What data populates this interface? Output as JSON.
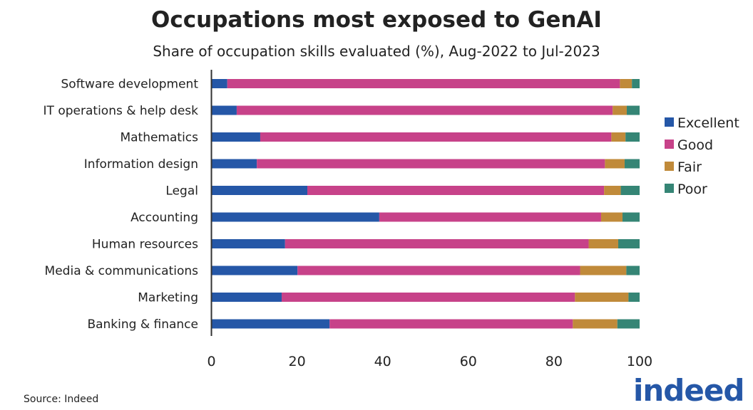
{
  "chart_data": {
    "type": "bar",
    "orientation": "horizontal",
    "stacked": true,
    "title": "Occupations most exposed to GenAI",
    "subtitle": "Share of occupation skills evaluated (%), Aug-2022 to Jul-2023",
    "xlabel": "",
    "ylabel": "",
    "xlim": [
      0,
      100
    ],
    "xticks": [
      "0",
      "20",
      "40",
      "60",
      "80",
      "100"
    ],
    "grid": false,
    "legend_position": "right",
    "categories": [
      "Software development",
      "IT operations & help desk",
      "Mathematics",
      "Information design",
      "Legal",
      "Accounting",
      "Human resources",
      "Media & communications",
      "Marketing",
      "Banking & finance"
    ],
    "series": [
      {
        "name": "Excellent",
        "color": "#2557a7",
        "values": [
          3.7,
          5.9,
          11.4,
          10.6,
          22.4,
          39.2,
          17.2,
          20.1,
          16.4,
          27.6
        ]
      },
      {
        "name": "Good",
        "color": "#c74289",
        "values": [
          91.7,
          87.8,
          82.0,
          81.3,
          69.3,
          51.8,
          70.9,
          66.0,
          68.5,
          56.8
        ]
      },
      {
        "name": "Fair",
        "color": "#c08a3a",
        "values": [
          2.8,
          3.3,
          3.3,
          4.6,
          3.9,
          5.0,
          6.9,
          10.8,
          12.5,
          10.4
        ]
      },
      {
        "name": "Poor",
        "color": "#358575",
        "values": [
          1.8,
          3.0,
          3.3,
          3.5,
          4.4,
          4.0,
          5.0,
          3.1,
          2.6,
          5.2
        ]
      }
    ]
  },
  "source": "Source: Indeed",
  "logo_text": "indeed"
}
